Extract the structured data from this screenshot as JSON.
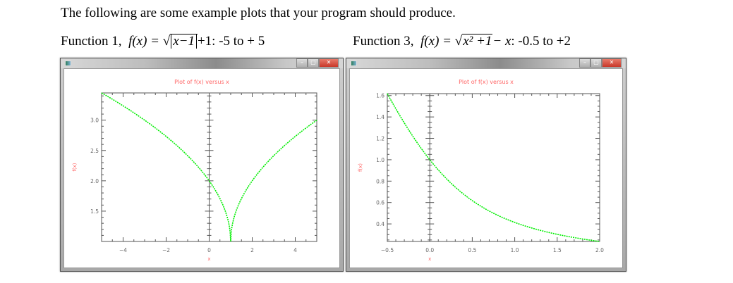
{
  "intro_text": "The following are some example plots that your program should produce.",
  "functions": [
    {
      "prefix": "Function 1,",
      "formula_lhs": "f(x) =",
      "formula_inner": "x−1",
      "formula_rhs": "+1",
      "range": ": -5 to + 5"
    },
    {
      "prefix": "Function 3,",
      "formula_lhs": "f(x) =",
      "formula_inner": "x² +1",
      "formula_rhs": "− x",
      "range": ": -0.5 to +2"
    }
  ],
  "windows": [
    {
      "buttons": {
        "minimize": "–",
        "maximize": "▢",
        "close": "✕"
      }
    },
    {
      "buttons": {
        "minimize": "–",
        "maximize": "▢",
        "close": "✕"
      }
    }
  ],
  "colors": {
    "title": "#ff6666",
    "curve": "#00ee00",
    "axis": "#555555",
    "tick_label": "#666666"
  },
  "chart_data": [
    {
      "type": "line",
      "title": "Plot of f(x) versus x",
      "xlabel": "x",
      "ylabel": "f(x)",
      "xlim": [
        -5,
        5
      ],
      "ylim": [
        1.0,
        3.449
      ],
      "xticks": [
        -4,
        -2,
        0,
        2,
        4
      ],
      "xtick_labels": [
        "−4",
        "−2",
        "0",
        "2",
        "4"
      ],
      "yticks": [
        1.5,
        2.0,
        2.5,
        3.0
      ],
      "ytick_labels": [
        "1.5",
        "2.0",
        "2.5",
        "3.0"
      ],
      "grid": false,
      "function": "sqrt(|x-1|)+1",
      "series": [
        {
          "name": "f(x)",
          "x": [
            -5,
            -4,
            -3,
            -2,
            -1,
            0,
            0.5,
            1,
            1.5,
            2,
            3,
            4,
            5
          ],
          "y": [
            3.449,
            3.236,
            3.0,
            2.732,
            2.414,
            2.0,
            1.707,
            1.0,
            1.707,
            2.0,
            2.414,
            2.732,
            3.0
          ]
        }
      ]
    },
    {
      "type": "line",
      "title": "Plot of f(x) versus x",
      "xlabel": "x",
      "ylabel": "f(x)",
      "xlim": [
        -0.5,
        2.0
      ],
      "ylim": [
        0.236,
        1.618
      ],
      "xticks": [
        -0.5,
        0.0,
        0.5,
        1.0,
        1.5,
        2.0
      ],
      "xtick_labels": [
        "−0.5",
        "0.0",
        "0.5",
        "1.0",
        "1.5",
        "2.0"
      ],
      "yticks": [
        0.4,
        0.6,
        0.8,
        1.0,
        1.2,
        1.4,
        1.6
      ],
      "ytick_labels": [
        "0.4",
        "0.6",
        "0.8",
        "1.0",
        "1.2",
        "1.4",
        "1.6"
      ],
      "grid": false,
      "function": "sqrt(x^2+1)-x",
      "series": [
        {
          "name": "f(x)",
          "x": [
            -0.5,
            -0.25,
            0,
            0.25,
            0.5,
            0.75,
            1.0,
            1.25,
            1.5,
            1.75,
            2.0
          ],
          "y": [
            1.618,
            1.281,
            1.0,
            0.781,
            0.618,
            0.5,
            0.414,
            0.351,
            0.303,
            0.266,
            0.236
          ]
        }
      ]
    }
  ]
}
